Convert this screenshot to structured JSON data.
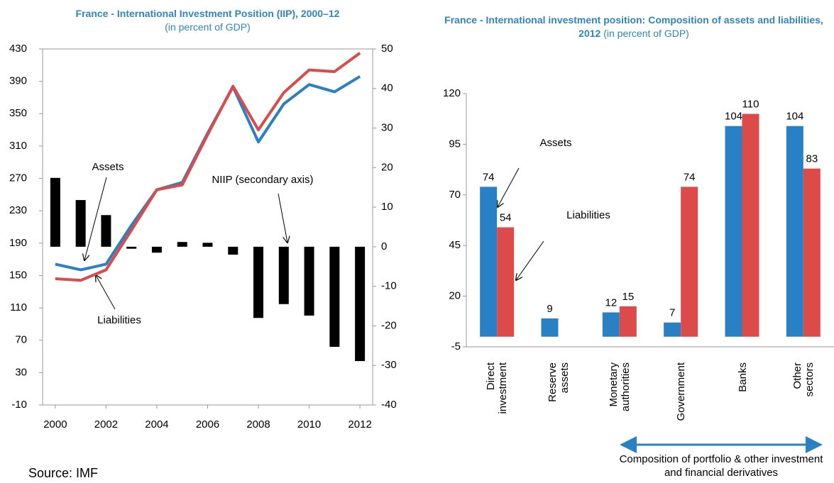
{
  "chart_data": [
    {
      "type": "combo",
      "title": "France - International Investment Position (IIP), 2000–12",
      "subtitle": "(in percent of GDP)",
      "source": "Source: IMF",
      "x": [
        2000,
        2001,
        2002,
        2003,
        2004,
        2005,
        2006,
        2007,
        2008,
        2009,
        2010,
        2011,
        2012
      ],
      "xlim": [
        1999.5,
        2012.5
      ],
      "xticks": [
        2000,
        2002,
        2004,
        2006,
        2008,
        2010,
        2012
      ],
      "ylim": [
        -10,
        430
      ],
      "yticks": [
        -10,
        30,
        70,
        110,
        150,
        190,
        230,
        270,
        310,
        350,
        390,
        430
      ],
      "y2lim": [
        -40,
        50
      ],
      "y2ticks": [
        -40,
        -30,
        -20,
        -10,
        0,
        10,
        20,
        30,
        40,
        50
      ],
      "grid": false,
      "series": [
        {
          "name": "Assets",
          "type": "line",
          "color": "#2a80c4",
          "values": [
            164,
            157,
            164,
            212,
            256,
            265,
            326,
            383,
            315,
            362,
            386,
            377,
            396
          ]
        },
        {
          "name": "Liabilities",
          "type": "line",
          "color": "#dc4a4a",
          "values": [
            146,
            144,
            157,
            206,
            256,
            262,
            324,
            384,
            330,
            376,
            404,
            402,
            425
          ]
        },
        {
          "name": "NIIP (secondary axis)",
          "type": "bar",
          "axis": "y2",
          "color": "#000000",
          "values": [
            17.4,
            11.8,
            8,
            -0.5,
            -1.5,
            1.2,
            1,
            -2,
            -18,
            -14.5,
            -17.4,
            -25.3,
            -28.9
          ]
        }
      ]
    },
    {
      "type": "bar",
      "title": "France - International investment position: Composition of assets and liabilities, 2012",
      "subtitle": "(in percent of GDP)",
      "annotation": "Composition of portfolio & other investment and financial derivatives",
      "categories": [
        "Direct investment",
        "Reserve assets",
        "Monetary authorities",
        "Government",
        "Banks",
        "Other sectors"
      ],
      "ylim": [
        -5,
        120
      ],
      "yticks": [
        -5,
        20,
        45,
        70,
        95,
        120
      ],
      "grid": false,
      "series": [
        {
          "name": "Assets",
          "color": "#2a80c4",
          "values": [
            74,
            9,
            12,
            7,
            104,
            104
          ]
        },
        {
          "name": "Liabilities",
          "color": "#dc4a4a",
          "values": [
            54,
            null,
            15,
            74,
            110,
            83
          ]
        }
      ]
    }
  ]
}
